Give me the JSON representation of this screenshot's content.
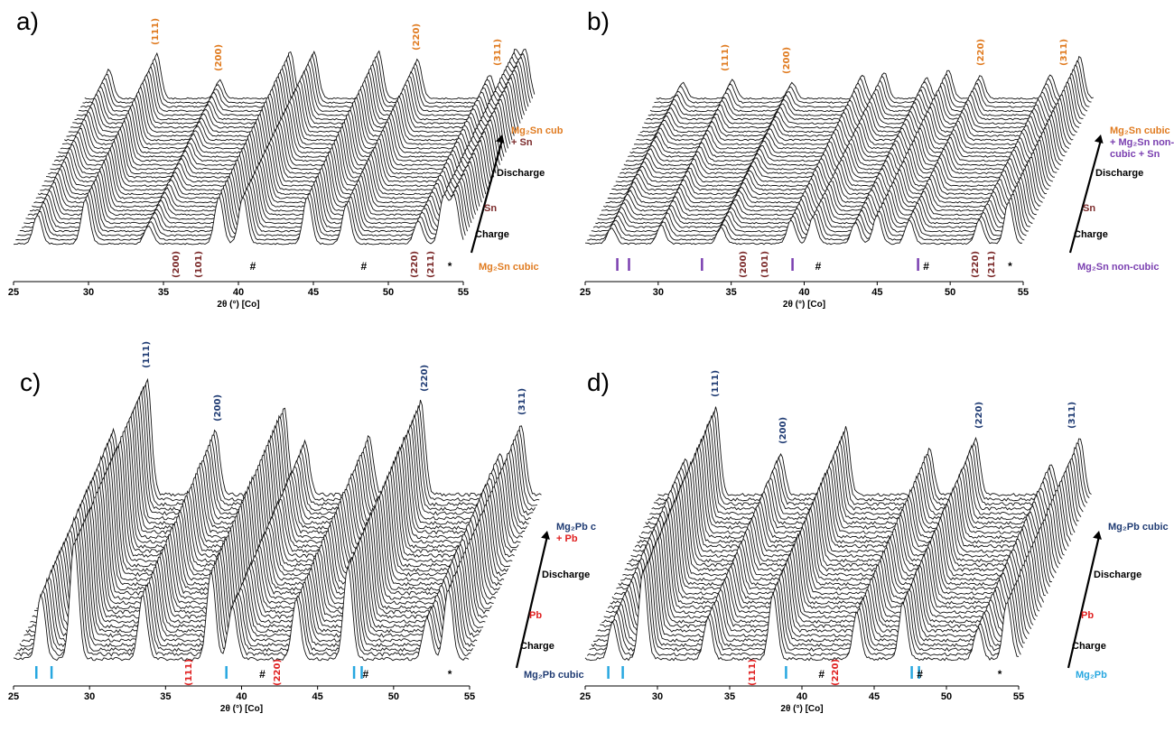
{
  "chart_data": [
    {
      "id": "a",
      "panel_label": "a)",
      "type": "line",
      "chart_kind": "stacked waterfall XRD patterns",
      "xlabel": "2θ (°) [Co]",
      "xlim": [
        25,
        55
      ],
      "xticks": [
        25,
        30,
        35,
        40,
        45,
        50,
        55
      ],
      "trace_count": 36,
      "peaks": [
        {
          "pos": 26.6,
          "h": 0.55
        },
        {
          "pos": 29.8,
          "h": 0.85
        },
        {
          "pos": 34.0,
          "h": 0.35
        },
        {
          "pos": 38.7,
          "h": 0.9
        },
        {
          "pos": 40.3,
          "h": 0.9
        },
        {
          "pos": 44.6,
          "h": 0.9
        },
        {
          "pos": 47.2,
          "h": 0.75
        },
        {
          "pos": 52.0,
          "h": 0.45
        },
        {
          "pos": 53.7,
          "h": 0.9
        },
        {
          "pos": 54.4,
          "h": 0.9
        }
      ],
      "top_labels": [
        {
          "text": "(111)",
          "x": 29.8,
          "color": "#e07b20"
        },
        {
          "text": "(200)",
          "x": 34.0,
          "color": "#e07b20"
        },
        {
          "text": "(220)",
          "x": 47.2,
          "color": "#e07b20"
        },
        {
          "text": "(311)",
          "x": 52.6,
          "color": "#e07b20"
        }
      ],
      "bottom_labels": [
        {
          "text": "(200)",
          "x": 35.9,
          "color": "#7b2a2a"
        },
        {
          "text": "(101)",
          "x": 37.4,
          "color": "#7b2a2a"
        },
        {
          "text": "(220)",
          "x": 51.8,
          "color": "#7b2a2a"
        },
        {
          "text": "(211)",
          "x": 52.9,
          "color": "#7b2a2a"
        }
      ],
      "symbols": [
        {
          "text": "#",
          "x": 41.0
        },
        {
          "text": "#",
          "x": 48.4
        },
        {
          "text": "*",
          "x": 54.2
        }
      ],
      "ticks": [],
      "tick_color": "#7a3fb0",
      "side": {
        "top_line1": "Mg₂Sn cub",
        "top_line2": "+ Sn",
        "top_color": "#e07b20",
        "top_color2": "#7b2a2a",
        "discharge": "Discharge",
        "mid": "Sn",
        "mid_color": "#7b2a2a",
        "charge": "Charge",
        "bottom": "Mg₂Sn cubic",
        "bottom_color": "#e07b20"
      }
    },
    {
      "id": "b",
      "panel_label": "b)",
      "type": "line",
      "chart_kind": "stacked waterfall XRD patterns",
      "xlabel": "2θ (°) [Co]",
      "xlim": [
        25,
        55
      ],
      "xticks": [
        25,
        30,
        35,
        40,
        45,
        50,
        55
      ],
      "trace_count": 36,
      "peaks": [
        {
          "pos": 26.8,
          "h": 0.3
        },
        {
          "pos": 30.2,
          "h": 0.35
        },
        {
          "pos": 34.3,
          "h": 0.3
        },
        {
          "pos": 39.1,
          "h": 0.45
        },
        {
          "pos": 40.6,
          "h": 0.5
        },
        {
          "pos": 43.5,
          "h": 0.4
        },
        {
          "pos": 45.0,
          "h": 0.55
        },
        {
          "pos": 47.2,
          "h": 0.45
        },
        {
          "pos": 52.0,
          "h": 0.45
        },
        {
          "pos": 54.0,
          "h": 0.8
        }
      ],
      "top_labels": [
        {
          "text": "(111)",
          "x": 29.8,
          "color": "#e07b20"
        },
        {
          "text": "(200)",
          "x": 34.0,
          "color": "#e07b20"
        },
        {
          "text": "(220)",
          "x": 47.3,
          "color": "#e07b20"
        },
        {
          "text": "(311)",
          "x": 53.0,
          "color": "#e07b20"
        }
      ],
      "bottom_labels": [
        {
          "text": "(200)",
          "x": 35.9,
          "color": "#7b2a2a"
        },
        {
          "text": "(101)",
          "x": 37.4,
          "color": "#7b2a2a"
        },
        {
          "text": "(220)",
          "x": 51.8,
          "color": "#7b2a2a"
        },
        {
          "text": "(211)",
          "x": 52.9,
          "color": "#7b2a2a"
        }
      ],
      "symbols": [
        {
          "text": "#",
          "x": 41.0
        },
        {
          "text": "#",
          "x": 48.4
        },
        {
          "text": "*",
          "x": 54.2
        }
      ],
      "ticks": [
        27.2,
        28.0,
        33.0,
        39.2,
        47.8
      ],
      "tick_color": "#7a3fb0",
      "side": {
        "top_line1": "Mg₂Sn cubic",
        "top_line2": "+ Mg₂Sn non-",
        "top_line3": "cubic + Sn",
        "top_color": "#e07b20",
        "top_color2": "#7a3fb0",
        "discharge": "Discharge",
        "mid": "Sn",
        "mid_color": "#7b2a2a",
        "charge": "Charge",
        "bottom": "Mg₂Sn non-cubic",
        "bottom_color": "#7a3fb0"
      }
    },
    {
      "id": "c",
      "panel_label": "c)",
      "type": "line",
      "chart_kind": "stacked waterfall XRD patterns",
      "xlabel": "2θ (°) [Co]",
      "xlim": [
        25,
        55
      ],
      "xticks": [
        25,
        30,
        35,
        40,
        45,
        50,
        55
      ],
      "trace_count": 36,
      "peaks": [
        {
          "pos": 26.8,
          "h": 0.55
        },
        {
          "pos": 29.0,
          "h": 1.0
        },
        {
          "pos": 33.5,
          "h": 0.55
        },
        {
          "pos": 38.0,
          "h": 0.75
        },
        {
          "pos": 39.4,
          "h": 0.45
        },
        {
          "pos": 43.6,
          "h": 0.5
        },
        {
          "pos": 47.0,
          "h": 0.8
        },
        {
          "pos": 52.2,
          "h": 0.35
        },
        {
          "pos": 53.6,
          "h": 0.6
        }
      ],
      "top_labels": [
        {
          "text": "(111)",
          "x": 29.0,
          "color": "#1f3b73"
        },
        {
          "text": "(200)",
          "x": 33.7,
          "color": "#1f3b73"
        },
        {
          "text": "(220)",
          "x": 47.3,
          "color": "#1f3b73"
        },
        {
          "text": "(311)",
          "x": 53.7,
          "color": "#1f3b73"
        }
      ],
      "bottom_labels": [
        {
          "text": "(111)",
          "x": 36.6,
          "color": "#e01f1f"
        },
        {
          "text": "(220)",
          "x": 42.4,
          "color": "#e01f1f"
        }
      ],
      "symbols": [
        {
          "text": "#",
          "x": 41.4
        },
        {
          "text": "#",
          "x": 48.2
        },
        {
          "text": "*",
          "x": 53.8
        }
      ],
      "ticks": [
        26.5,
        27.5,
        39.0,
        47.4,
        47.9
      ],
      "tick_color": "#27a7e0",
      "side": {
        "top_line1": "Mg₂Pb c",
        "top_line2": "+ Pb",
        "top_color": "#1f3b73",
        "top_color2": "#e01f1f",
        "discharge": "Discharge",
        "mid": "Pb",
        "mid_color": "#e01f1f",
        "charge": "Charge",
        "bottom": "Mg₂Pb cubic",
        "bottom_color": "#1f3b73"
      }
    },
    {
      "id": "d",
      "panel_label": "d)",
      "type": "line",
      "chart_kind": "stacked waterfall XRD patterns",
      "xlabel": "2θ (°) [Co]",
      "xlim": [
        25,
        55
      ],
      "xticks": [
        25,
        30,
        35,
        40,
        45,
        50,
        55
      ],
      "trace_count": 36,
      "peaks": [
        {
          "pos": 26.9,
          "h": 0.35
        },
        {
          "pos": 29.0,
          "h": 0.85
        },
        {
          "pos": 33.5,
          "h": 0.4
        },
        {
          "pos": 38.0,
          "h": 0.65
        },
        {
          "pos": 43.8,
          "h": 0.45
        },
        {
          "pos": 47.0,
          "h": 0.55
        },
        {
          "pos": 52.2,
          "h": 0.3
        },
        {
          "pos": 54.2,
          "h": 0.55
        }
      ],
      "top_labels": [
        {
          "text": "(111)",
          "x": 29.0,
          "color": "#1f3b73"
        },
        {
          "text": "(200)",
          "x": 33.7,
          "color": "#1f3b73"
        },
        {
          "text": "(220)",
          "x": 47.3,
          "color": "#1f3b73"
        },
        {
          "text": "(311)",
          "x": 53.7,
          "color": "#1f3b73"
        }
      ],
      "bottom_labels": [
        {
          "text": "(111)",
          "x": 36.6,
          "color": "#e01f1f"
        },
        {
          "text": "(220)",
          "x": 42.4,
          "color": "#e01f1f"
        }
      ],
      "symbols": [
        {
          "text": "#",
          "x": 41.4
        },
        {
          "text": "#",
          "x": 48.2
        },
        {
          "text": "*",
          "x": 53.8
        }
      ],
      "ticks": [
        26.6,
        27.6,
        38.9,
        47.6,
        48.1
      ],
      "tick_color": "#27a7e0",
      "side": {
        "top_line1": "Mg₂Pb cubic",
        "top_color": "#1f3b73",
        "discharge": "Discharge",
        "mid": "Pb",
        "mid_color": "#e01f1f",
        "charge": "Charge",
        "bottom": "Mg₂Pb",
        "bottom_color": "#27a7e0"
      }
    }
  ]
}
